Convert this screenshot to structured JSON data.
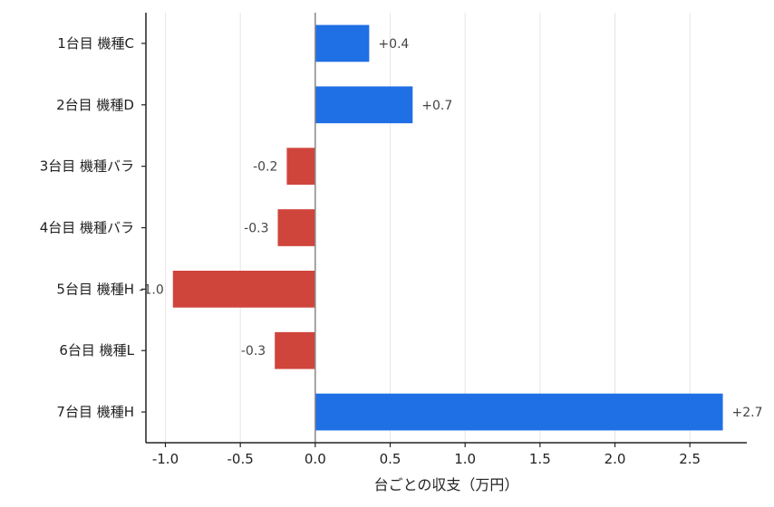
{
  "chart_data": {
    "type": "bar",
    "orientation": "horizontal",
    "categories": [
      "1台目 機種C",
      "2台目 機種D",
      "3台目 機種バラ",
      "4台目 機種バラ",
      "5台目 機種H",
      "6台目 機種L",
      "7台目 機種H"
    ],
    "values": [
      0.36,
      0.65,
      -0.19,
      -0.25,
      -0.95,
      -0.27,
      2.72
    ],
    "data_labels": [
      "+0.4",
      "+0.7",
      "-0.2",
      "-0.3",
      "-1.0",
      "-0.3",
      "+2.7"
    ],
    "colors": {
      "positive": "#1f6fe5",
      "negative": "#cf453b"
    },
    "xlabel": "台ごとの収支（万円）",
    "ylabel": "",
    "xlim": [
      -1.13,
      2.88
    ],
    "xticks": [
      -1.0,
      -0.5,
      0.0,
      0.5,
      1.0,
      1.5,
      2.0,
      2.5
    ],
    "xtick_labels": [
      "-1.0",
      "-0.5",
      "0.0",
      "0.5",
      "1.0",
      "1.5",
      "2.0",
      "2.5"
    ],
    "grid": "vertical",
    "zero_line": true
  }
}
